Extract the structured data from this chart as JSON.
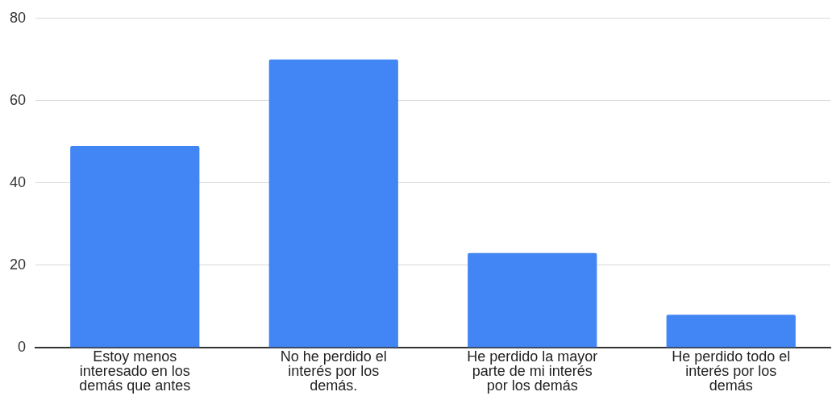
{
  "chart_data": {
    "type": "bar",
    "categories": [
      "Estoy menos interesado en los demás que antes",
      "No he perdido el interés por los demás.",
      "He perdido la mayor parte de mi interés por los demás",
      "He perdido todo el interés por los demás"
    ],
    "values": [
      49,
      70,
      23,
      8
    ],
    "color": "#4285f4",
    "ylim": [
      0,
      80
    ],
    "yticks": [
      0,
      20,
      40,
      60,
      80
    ],
    "grid": "y",
    "legend": false
  }
}
